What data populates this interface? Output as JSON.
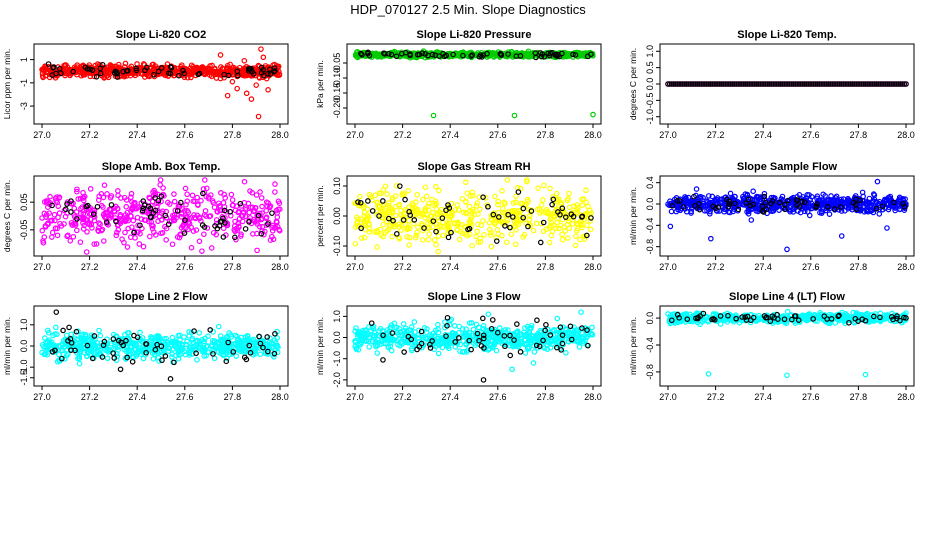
{
  "figure": {
    "title": "HDP_070127  2.5 Min. Slope Diagnostics"
  },
  "chart_data": [
    {
      "type": "scatter",
      "title": "Slope Li-820 CO2",
      "xlabel": "",
      "ylabel": "Licor ppm per min.",
      "xlim": [
        27.0,
        28.0
      ],
      "ylim": [
        -4.2,
        2.0
      ],
      "xticks": [
        "27.0",
        "27.2",
        "27.4",
        "27.6",
        "27.8",
        "28.0"
      ],
      "yticks": [
        {
          "v": 1,
          "label": "1"
        },
        {
          "v": -1,
          "label": "-1"
        },
        {
          "v": -3,
          "label": "-3"
        }
      ],
      "series": [
        {
          "name": "all samples",
          "color": "#ff0000",
          "center": 0.0,
          "spread": 0.25,
          "count": 700
        },
        {
          "name": "outliers",
          "color": "#ff0000",
          "points": [
            [
              27.75,
              1.4
            ],
            [
              27.8,
              -0.9
            ],
            [
              27.82,
              -1.5
            ],
            [
              27.78,
              -2.1
            ],
            [
              27.86,
              -1.9
            ],
            [
              27.88,
              -2.4
            ],
            [
              27.9,
              -1.2
            ],
            [
              27.91,
              -3.9
            ],
            [
              27.92,
              1.9
            ],
            [
              27.93,
              1.2
            ],
            [
              27.95,
              -1.6
            ],
            [
              27.85,
              0.9
            ]
          ]
        },
        {
          "name": "line samples",
          "color": "#000000",
          "center": 0.0,
          "spread": 0.25,
          "count": 60
        }
      ]
    },
    {
      "type": "scatter",
      "title": "Slope Li-820 Pressure",
      "xlabel": "",
      "ylabel": "kPa per min.",
      "xlim": [
        27.0,
        28.0
      ],
      "ylim": [
        -0.24,
        0.0
      ],
      "xticks": [
        "27.0",
        "27.2",
        "27.4",
        "27.6",
        "27.8",
        "28.0"
      ],
      "yticks": [
        {
          "v": -0.05,
          "label": "-0.05"
        },
        {
          "v": -0.1,
          "label": "-0.10"
        },
        {
          "v": -0.15,
          "label": "-0.15"
        },
        {
          "v": -0.2,
          "label": "-0.20"
        }
      ],
      "series": [
        {
          "name": "all samples",
          "color": "#00cc00",
          "center": -0.022,
          "spread": 0.004,
          "count": 600
        },
        {
          "name": "outliers",
          "color": "#00cc00",
          "points": [
            [
              27.33,
              -0.225
            ],
            [
              27.67,
              -0.225
            ],
            [
              28.0,
              -0.222
            ]
          ]
        },
        {
          "name": "line samples",
          "color": "#000000",
          "center": -0.022,
          "spread": 0.004,
          "count": 60
        }
      ]
    },
    {
      "type": "scatter",
      "title": "Slope Li-820 Temp.",
      "xlabel": "",
      "ylabel": "degrees C per min.",
      "xlim": [
        27.0,
        28.0
      ],
      "ylim": [
        -1.1,
        1.1
      ],
      "xticks": [
        "27.0",
        "27.2",
        "27.4",
        "27.6",
        "27.8",
        "28.0"
      ],
      "yticks": [
        {
          "v": 1.0,
          "label": "1.0"
        },
        {
          "v": 0.5,
          "label": "0.5"
        },
        {
          "v": 0.0,
          "label": "0.0"
        },
        {
          "v": -0.5,
          "label": "-0.5"
        },
        {
          "v": -1.0,
          "label": "-1.0"
        }
      ],
      "series": [
        {
          "name": "all samples",
          "color": "#ff00ff",
          "constant": 0.0,
          "count": 130
        },
        {
          "name": "line samples",
          "color": "#000000",
          "constant": 0.0,
          "count": 130
        }
      ]
    },
    {
      "type": "scatter",
      "title": "Slope Amb. Box Temp.",
      "xlabel": "",
      "ylabel": "degrees C per min.",
      "xlim": [
        27.0,
        28.0
      ],
      "ylim": [
        -0.13,
        0.13
      ],
      "xticks": [
        "27.0",
        "27.2",
        "27.4",
        "27.6",
        "27.8",
        "28.0"
      ],
      "yticks": [
        {
          "v": 0.05,
          "label": "0.05"
        },
        {
          "v": -0.05,
          "label": "-0.05"
        }
      ],
      "series": [
        {
          "name": "all samples",
          "color": "#ff00ff",
          "center": 0.0,
          "spread": 0.05,
          "count": 500
        },
        {
          "name": "line samples",
          "color": "#000000",
          "center": 0.0,
          "spread": 0.04,
          "count": 55
        }
      ]
    },
    {
      "type": "scatter",
      "title": "Slope Gas Stream RH",
      "xlabel": "",
      "ylabel": "percent per min.",
      "xlim": [
        27.0,
        28.0
      ],
      "ylim": [
        -0.12,
        0.12
      ],
      "xticks": [
        "27.0",
        "27.2",
        "27.4",
        "27.6",
        "27.8",
        "28.0"
      ],
      "yticks": [
        {
          "v": 0.1,
          "label": "0.10"
        },
        {
          "v": 0.0,
          "label": "0.00"
        },
        {
          "v": -0.1,
          "label": "-0.10"
        }
      ],
      "series": [
        {
          "name": "all samples",
          "color": "#ffff00",
          "center": 0.0,
          "spread": 0.045,
          "count": 500
        },
        {
          "name": "line samples",
          "color": "#000000",
          "center": 0.0,
          "spread": 0.04,
          "count": 55
        }
      ]
    },
    {
      "type": "scatter",
      "title": "Slope Sample Flow",
      "xlabel": "",
      "ylabel": "ml/min per min.",
      "xlim": [
        27.0,
        28.0
      ],
      "ylim": [
        -0.9,
        0.45
      ],
      "xticks": [
        "27.0",
        "27.2",
        "27.4",
        "27.6",
        "27.8",
        "28.0"
      ],
      "yticks": [
        {
          "v": 0.4,
          "label": "0.4"
        },
        {
          "v": 0.0,
          "label": "0.0"
        },
        {
          "v": -0.4,
          "label": "-0.4"
        },
        {
          "v": -0.8,
          "label": "-0.8"
        }
      ],
      "series": [
        {
          "name": "all samples",
          "color": "#0000ff",
          "center": 0.0,
          "spread": 0.08,
          "count": 600
        },
        {
          "name": "outliers",
          "color": "#0000ff",
          "points": [
            [
              27.01,
              -0.42
            ],
            [
              27.12,
              0.28
            ],
            [
              27.18,
              -0.65
            ],
            [
              27.5,
              -0.85
            ],
            [
              27.73,
              -0.6
            ],
            [
              27.88,
              0.42
            ],
            [
              27.92,
              -0.45
            ],
            [
              27.35,
              -0.3
            ]
          ]
        },
        {
          "name": "line samples",
          "color": "#000000",
          "center": 0.0,
          "spread": 0.07,
          "count": 55
        }
      ]
    },
    {
      "type": "scatter",
      "title": "Slope Line 2 Flow",
      "xlabel": "",
      "ylabel": "ml/min per min.",
      "xlim": [
        27.0,
        28.0
      ],
      "ylim": [
        -1.7,
        1.7
      ],
      "xticks": [
        "27.0",
        "27.2",
        "27.4",
        "27.6",
        "27.8",
        "28.0"
      ],
      "yticks": [
        {
          "v": 1.0,
          "label": "1.0"
        },
        {
          "v": 0.0,
          "label": "0.0"
        },
        {
          "v": -1.0,
          "label": "-1.0"
        },
        {
          "v": -1.5,
          "label": "-1.5"
        }
      ],
      "series": [
        {
          "name": "all samples",
          "color": "#00ffff",
          "center": 0.0,
          "spread": 0.3,
          "count": 600
        },
        {
          "name": "line samples",
          "color": "#000000",
          "center": 0.0,
          "spread": 0.45,
          "count": 55
        },
        {
          "name": "outliers",
          "color": "#000000",
          "points": [
            [
              27.06,
              1.6
            ],
            [
              27.33,
              -1.1
            ],
            [
              27.54,
              -1.55
            ]
          ]
        }
      ]
    },
    {
      "type": "scatter",
      "title": "Slope Line 3 Flow",
      "xlabel": "",
      "ylabel": "ml/min per min.",
      "xlim": [
        27.0,
        28.0
      ],
      "ylim": [
        -2.1,
        1.3
      ],
      "xticks": [
        "27.0",
        "27.2",
        "27.4",
        "27.6",
        "27.8",
        "28.0"
      ],
      "yticks": [
        {
          "v": 1.0,
          "label": "1.0"
        },
        {
          "v": 0.0,
          "label": "0.0"
        },
        {
          "v": -1.0,
          "label": "-1.0"
        },
        {
          "v": -2.0,
          "label": "-2.0"
        }
      ],
      "series": [
        {
          "name": "all samples",
          "color": "#00ffff",
          "center": 0.0,
          "spread": 0.3,
          "count": 600
        },
        {
          "name": "outliers",
          "color": "#00ffff",
          "points": [
            [
              27.56,
              1.1
            ],
            [
              27.75,
              -1.2
            ],
            [
              27.66,
              -1.5
            ],
            [
              27.95,
              1.2
            ],
            [
              27.85,
              0.9
            ]
          ]
        },
        {
          "name": "line samples",
          "color": "#000000",
          "center": 0.0,
          "spread": 0.45,
          "count": 55
        },
        {
          "name": "outliers dark",
          "color": "#000000",
          "points": [
            [
              27.54,
              -2.0
            ]
          ]
        }
      ]
    },
    {
      "type": "scatter",
      "title": "Slope Line 4 (LT) Flow",
      "xlabel": "",
      "ylabel": "ml/min per min.",
      "xlim": [
        27.0,
        28.0
      ],
      "ylim": [
        -0.95,
        0.12
      ],
      "xticks": [
        "27.0",
        "27.2",
        "27.4",
        "27.6",
        "27.8",
        "28.0"
      ],
      "yticks": [
        {
          "v": 0.0,
          "label": "0.0"
        },
        {
          "v": -0.4,
          "label": "-0.4"
        },
        {
          "v": -0.8,
          "label": "-0.8"
        }
      ],
      "series": [
        {
          "name": "all samples",
          "color": "#00ffff",
          "center": 0.0,
          "spread": 0.035,
          "count": 550
        },
        {
          "name": "outliers",
          "color": "#00ffff",
          "points": [
            [
              27.17,
              -0.83
            ],
            [
              27.5,
              -0.85
            ],
            [
              27.83,
              -0.84
            ]
          ]
        },
        {
          "name": "line samples",
          "color": "#000000",
          "center": 0.0,
          "spread": 0.03,
          "count": 55
        }
      ]
    }
  ]
}
